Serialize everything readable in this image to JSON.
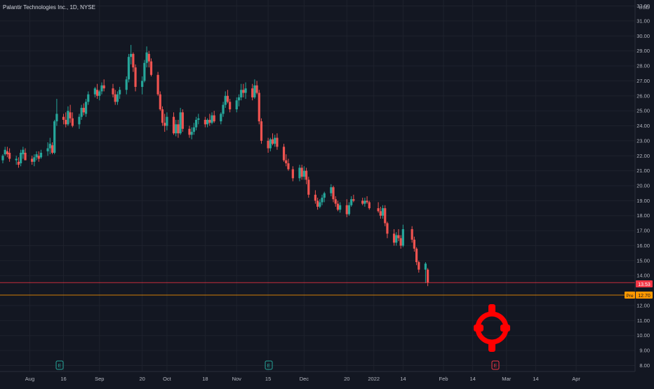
{
  "header": {
    "symbol_title": "Palantir Technologies Inc., 1D, NYSE"
  },
  "price_scale": {
    "currency": "USD",
    "labels": [
      "32.00",
      "31.00",
      "30.00",
      "29.00",
      "28.00",
      "27.00",
      "26.00",
      "25.00",
      "24.00",
      "23.00",
      "22.00",
      "21.00",
      "20.00",
      "19.00",
      "18.00",
      "17.00",
      "16.00",
      "15.00",
      "14.00",
      "12.00",
      "11.00",
      "10.00",
      "9.00",
      "8.00"
    ]
  },
  "time_scale": {
    "labels": [
      "Aug",
      "16",
      "Sep",
      "20",
      "Oct",
      "18",
      "Nov",
      "15",
      "Dec",
      "20",
      "2022",
      "14",
      "Feb",
      "14",
      "Mar",
      "14",
      "Apr"
    ]
  },
  "price_markers": {
    "last": {
      "value": "13.53",
      "color": "#f23645"
    },
    "premarket": {
      "label": "Pre",
      "value": "12.70",
      "color": "#ff9800"
    }
  },
  "event_markers": [
    "E",
    "E",
    "E"
  ],
  "colors": {
    "background": "#131722",
    "grid": "#1e222d",
    "up": "#26a69a",
    "down": "#ef5350",
    "scale_text": "#b2b5be",
    "crosshair_icon": "#ff0000"
  },
  "overlay_icon": "crosshair-target-icon",
  "chart_data": {
    "type": "candlestick",
    "title": "Palantir Technologies Inc., 1D, NYSE",
    "ylabel": "USD",
    "ylim": [
      7.6,
      32.4
    ],
    "x_range": [
      "2021-07-20",
      "2022-04-25"
    ],
    "grid": true,
    "series": [
      {
        "columns": [
          "date",
          "open",
          "high",
          "low",
          "close"
        ],
        "values": [
          [
            "2021-07-20",
            21.7,
            22.1,
            21.5,
            22.0
          ],
          [
            "2021-07-21",
            22.1,
            22.6,
            22.0,
            22.4
          ],
          [
            "2021-07-22",
            22.3,
            22.6,
            21.9,
            22.1
          ],
          [
            "2021-07-23",
            22.2,
            22.5,
            21.6,
            21.8
          ],
          [
            "2021-07-26",
            21.7,
            22.0,
            21.4,
            21.8
          ],
          [
            "2021-07-27",
            21.6,
            21.9,
            21.2,
            21.4
          ],
          [
            "2021-07-28",
            21.5,
            22.4,
            21.3,
            22.2
          ],
          [
            "2021-07-29",
            22.1,
            22.6,
            21.8,
            22.4
          ],
          [
            "2021-07-30",
            22.2,
            22.5,
            21.8,
            21.7
          ],
          [
            "2021-08-02",
            21.8,
            22.0,
            21.4,
            21.6
          ],
          [
            "2021-08-03",
            21.6,
            22.1,
            21.3,
            21.9
          ],
          [
            "2021-08-04",
            21.9,
            22.3,
            21.7,
            22.1
          ],
          [
            "2021-08-05",
            22.0,
            22.3,
            21.6,
            21.8
          ],
          [
            "2021-08-06",
            21.9,
            22.4,
            21.8,
            22.2
          ],
          [
            "2021-08-09",
            22.3,
            22.9,
            22.0,
            22.5
          ],
          [
            "2021-08-10",
            22.5,
            23.2,
            22.1,
            22.8
          ],
          [
            "2021-08-11",
            22.7,
            22.9,
            22.1,
            22.2
          ],
          [
            "2021-08-12",
            22.2,
            24.4,
            22.1,
            24.3
          ],
          [
            "2021-08-13",
            24.3,
            25.8,
            24.0,
            24.8
          ],
          [
            "2021-08-16",
            24.6,
            24.8,
            24.1,
            24.4
          ],
          [
            "2021-08-17",
            24.4,
            24.9,
            23.9,
            24.1
          ],
          [
            "2021-08-18",
            24.1,
            25.3,
            24.0,
            25.0
          ],
          [
            "2021-08-19",
            24.9,
            25.4,
            24.2,
            24.5
          ],
          [
            "2021-08-20",
            24.5,
            24.9,
            23.9,
            24.0
          ],
          [
            "2021-08-23",
            24.1,
            24.8,
            23.8,
            24.6
          ],
          [
            "2021-08-24",
            24.6,
            25.4,
            24.4,
            25.2
          ],
          [
            "2021-08-25",
            25.2,
            25.5,
            24.7,
            24.9
          ],
          [
            "2021-08-26",
            24.8,
            25.8,
            24.6,
            25.6
          ],
          [
            "2021-08-27",
            25.6,
            26.3,
            25.4,
            26.1
          ],
          [
            "2021-08-30",
            26.1,
            26.6,
            25.9,
            26.5
          ],
          [
            "2021-08-31",
            26.4,
            26.8,
            25.8,
            26.0
          ],
          [
            "2021-09-01",
            26.0,
            26.4,
            25.7,
            26.3
          ],
          [
            "2021-09-02",
            26.3,
            26.9,
            26.1,
            26.7
          ],
          [
            "2021-09-03",
            26.7,
            27.1,
            26.3,
            26.5
          ],
          [
            "2021-09-07",
            26.5,
            26.8,
            25.9,
            26.1
          ],
          [
            "2021-09-08",
            26.1,
            26.4,
            25.4,
            25.6
          ],
          [
            "2021-09-09",
            25.6,
            26.3,
            25.4,
            26.1
          ],
          [
            "2021-09-10",
            26.1,
            26.6,
            25.8,
            26.4
          ],
          [
            "2021-09-13",
            26.4,
            27.3,
            26.1,
            27.1
          ],
          [
            "2021-09-14",
            27.1,
            28.8,
            26.9,
            28.6
          ],
          [
            "2021-09-15",
            28.6,
            29.4,
            28.1,
            28.8
          ],
          [
            "2021-09-16",
            28.8,
            28.9,
            27.6,
            27.9
          ],
          [
            "2021-09-17",
            27.9,
            28.1,
            26.3,
            26.6
          ],
          [
            "2021-09-20",
            26.6,
            27.3,
            26.1,
            27.0
          ],
          [
            "2021-09-21",
            27.0,
            28.4,
            26.9,
            28.2
          ],
          [
            "2021-09-22",
            28.2,
            29.3,
            27.9,
            28.9
          ],
          [
            "2021-09-23",
            28.8,
            29.0,
            27.9,
            28.3
          ],
          [
            "2021-09-24",
            28.3,
            28.5,
            27.3,
            27.4
          ],
          [
            "2021-09-27",
            27.4,
            27.6,
            26.0,
            26.1
          ],
          [
            "2021-09-28",
            26.1,
            26.3,
            25.0,
            25.1
          ],
          [
            "2021-09-29",
            25.1,
            25.3,
            24.0,
            24.2
          ],
          [
            "2021-09-30",
            24.2,
            24.8,
            23.6,
            24.0
          ],
          [
            "2021-10-01",
            24.0,
            24.9,
            23.7,
            24.6
          ],
          [
            "2021-10-04",
            24.6,
            24.9,
            23.4,
            23.5
          ],
          [
            "2021-10-05",
            23.5,
            24.4,
            23.3,
            24.1
          ],
          [
            "2021-10-06",
            24.1,
            24.4,
            23.2,
            23.5
          ],
          [
            "2021-10-07",
            23.5,
            25.2,
            23.4,
            24.9
          ],
          [
            "2021-10-08",
            24.9,
            25.1,
            23.6,
            23.8
          ],
          [
            "2021-10-11",
            23.8,
            24.0,
            23.2,
            23.4
          ],
          [
            "2021-10-12",
            23.4,
            23.9,
            23.1,
            23.6
          ],
          [
            "2021-10-13",
            23.6,
            24.2,
            23.4,
            23.9
          ],
          [
            "2021-10-14",
            23.9,
            24.6,
            23.7,
            24.4
          ],
          [
            "2021-10-15",
            24.4,
            24.8,
            24.1,
            24.5
          ],
          [
            "2021-10-18",
            24.4,
            24.6,
            23.9,
            24.1
          ],
          [
            "2021-10-19",
            24.1,
            24.5,
            23.9,
            24.4
          ],
          [
            "2021-10-20",
            24.4,
            24.8,
            24.0,
            24.2
          ],
          [
            "2021-10-21",
            24.2,
            24.9,
            24.1,
            24.7
          ],
          [
            "2021-10-22",
            24.7,
            25.0,
            24.2,
            24.3
          ],
          [
            "2021-10-25",
            24.3,
            24.9,
            24.1,
            24.8
          ],
          [
            "2021-10-26",
            24.8,
            25.6,
            24.6,
            25.4
          ],
          [
            "2021-10-27",
            25.4,
            26.3,
            25.2,
            26.0
          ],
          [
            "2021-10-28",
            26.0,
            26.4,
            25.5,
            25.6
          ],
          [
            "2021-10-29",
            25.6,
            25.8,
            24.9,
            25.1
          ],
          [
            "2021-11-01",
            25.1,
            25.9,
            24.9,
            25.7
          ],
          [
            "2021-11-02",
            25.7,
            26.1,
            25.3,
            25.9
          ],
          [
            "2021-11-03",
            25.9,
            26.8,
            25.7,
            26.4
          ],
          [
            "2021-11-04",
            26.4,
            26.8,
            25.9,
            26.2
          ],
          [
            "2021-11-05",
            26.2,
            26.9,
            25.8,
            26.5
          ],
          [
            "2021-11-08",
            26.5,
            26.8,
            25.7,
            25.9
          ],
          [
            "2021-11-09",
            25.9,
            27.1,
            25.8,
            26.7
          ],
          [
            "2021-11-10",
            26.7,
            27.0,
            26.1,
            26.2
          ],
          [
            "2021-11-11",
            26.2,
            26.4,
            24.1,
            24.3
          ],
          [
            "2021-11-12",
            24.3,
            24.5,
            22.8,
            23.0
          ],
          [
            "2021-11-15",
            23.0,
            23.2,
            22.2,
            22.5
          ],
          [
            "2021-11-16",
            22.5,
            23.2,
            22.3,
            23.1
          ],
          [
            "2021-11-17",
            23.1,
            23.5,
            22.7,
            22.8
          ],
          [
            "2021-11-18",
            22.8,
            23.4,
            22.6,
            23.2
          ],
          [
            "2021-11-19",
            23.2,
            23.5,
            22.4,
            22.6
          ],
          [
            "2021-11-22",
            22.6,
            22.8,
            21.6,
            21.7
          ],
          [
            "2021-11-23",
            21.7,
            22.1,
            21.3,
            21.5
          ],
          [
            "2021-11-24",
            21.5,
            21.8,
            21.0,
            21.1
          ],
          [
            "2021-11-26",
            21.1,
            21.3,
            20.3,
            20.5
          ],
          [
            "2021-11-29",
            20.5,
            21.4,
            20.3,
            21.2
          ],
          [
            "2021-11-30",
            21.2,
            21.4,
            20.4,
            20.6
          ],
          [
            "2021-12-01",
            20.6,
            21.3,
            20.4,
            21.0
          ],
          [
            "2021-12-02",
            21.0,
            21.2,
            20.1,
            20.4
          ],
          [
            "2021-12-03",
            20.4,
            20.6,
            19.2,
            19.4
          ],
          [
            "2021-12-06",
            19.4,
            19.7,
            18.8,
            19.0
          ],
          [
            "2021-12-07",
            19.0,
            19.2,
            18.4,
            18.6
          ],
          [
            "2021-12-08",
            18.6,
            19.1,
            18.5,
            18.9
          ],
          [
            "2021-12-09",
            18.9,
            19.4,
            18.7,
            19.2
          ],
          [
            "2021-12-10",
            19.2,
            19.6,
            18.9,
            19.5
          ],
          [
            "2021-12-13",
            19.5,
            20.1,
            19.3,
            19.9
          ],
          [
            "2021-12-14",
            19.9,
            20.0,
            18.9,
            19.1
          ],
          [
            "2021-12-15",
            19.1,
            19.3,
            18.6,
            18.8
          ],
          [
            "2021-12-16",
            18.8,
            19.0,
            18.3,
            18.4
          ],
          [
            "2021-12-17",
            18.4,
            18.9,
            18.2,
            18.7
          ],
          [
            "2021-12-20",
            18.7,
            19.1,
            17.9,
            18.1
          ],
          [
            "2021-12-21",
            18.1,
            18.9,
            18.0,
            18.7
          ],
          [
            "2021-12-22",
            18.7,
            19.3,
            18.6,
            19.1
          ],
          [
            "2021-12-23",
            19.1,
            19.4,
            18.9,
            19.0
          ],
          [
            "2021-12-27",
            19.0,
            19.2,
            18.7,
            18.8
          ],
          [
            "2021-12-28",
            18.8,
            19.2,
            18.6,
            19.0
          ],
          [
            "2021-12-29",
            19.0,
            19.3,
            18.8,
            18.9
          ],
          [
            "2021-12-30",
            18.9,
            19.0,
            18.4,
            18.5
          ],
          [
            "2022-01-03",
            18.5,
            18.9,
            18.2,
            18.3
          ],
          [
            "2022-01-04",
            18.3,
            18.6,
            17.8,
            18.0
          ],
          [
            "2022-01-05",
            18.0,
            18.7,
            17.8,
            18.5
          ],
          [
            "2022-01-06",
            18.5,
            18.7,
            17.3,
            17.5
          ],
          [
            "2022-01-07",
            17.5,
            17.6,
            16.5,
            16.8
          ],
          [
            "2022-01-10",
            16.8,
            17.1,
            16.0,
            16.2
          ],
          [
            "2022-01-11",
            16.2,
            16.9,
            16.0,
            16.7
          ],
          [
            "2022-01-12",
            16.7,
            17.1,
            16.3,
            16.5
          ],
          [
            "2022-01-13",
            16.5,
            16.7,
            15.8,
            16.0
          ],
          [
            "2022-01-14",
            16.0,
            17.4,
            15.9,
            17.1
          ],
          [
            "2022-01-18",
            17.1,
            17.3,
            16.2,
            16.4
          ],
          [
            "2022-01-19",
            16.4,
            16.6,
            15.6,
            15.8
          ],
          [
            "2022-01-20",
            15.8,
            15.9,
            14.7,
            14.9
          ],
          [
            "2022-01-21",
            14.9,
            15.0,
            14.2,
            14.4
          ],
          [
            "2022-01-24",
            14.4,
            14.9,
            13.5,
            14.8
          ],
          [
            "2022-01-25",
            14.4,
            14.5,
            13.3,
            13.53
          ]
        ]
      }
    ]
  }
}
